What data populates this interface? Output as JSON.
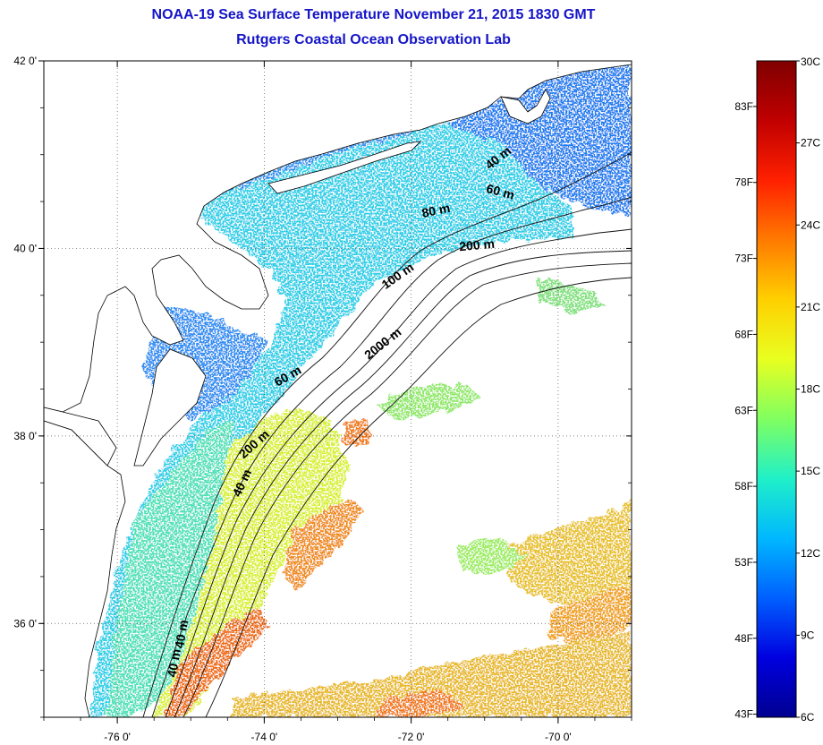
{
  "title": "NOAA-19 Sea Surface Temperature November 21, 2015 1830 GMT",
  "subtitle": "Rutgers Coastal Ocean Observation Lab",
  "map": {
    "lon_range": [
      -77.0,
      -69.0
    ],
    "lat_range": [
      35.0,
      42.0
    ],
    "lon_ticks": [
      {
        "value": -76,
        "label": "-76 0'"
      },
      {
        "value": -74,
        "label": "-74 0'"
      },
      {
        "value": -72,
        "label": "-72 0'"
      },
      {
        "value": -70,
        "label": "-70 0'"
      }
    ],
    "lat_ticks": [
      {
        "value": 42,
        "label": "42 0'"
      },
      {
        "value": 40,
        "label": "40 0'"
      },
      {
        "value": 38,
        "label": "38 0'"
      },
      {
        "value": 36,
        "label": "36 0'"
      }
    ],
    "gridlines": "dotted",
    "isobath_labels": [
      {
        "text": "40 m",
        "lon": -70.78,
        "lat": 40.93,
        "angle": -38
      },
      {
        "text": "60 m",
        "lon": -70.8,
        "lat": 40.56,
        "angle": 15
      },
      {
        "text": "80 m",
        "lon": -71.65,
        "lat": 40.36,
        "angle": -12
      },
      {
        "text": "200 m",
        "lon": -71.1,
        "lat": 39.99,
        "angle": -5
      },
      {
        "text": "100 m",
        "lon": -72.15,
        "lat": 39.67,
        "angle": -35
      },
      {
        "text": "2000 m",
        "lon": -72.35,
        "lat": 38.95,
        "angle": -38
      },
      {
        "text": "60 m",
        "lon": -73.65,
        "lat": 38.6,
        "angle": -30
      },
      {
        "text": "200 m",
        "lon": -74.1,
        "lat": 37.88,
        "angle": -42
      },
      {
        "text": "40 m",
        "lon": -74.25,
        "lat": 37.48,
        "angle": -65
      },
      {
        "text": "40 m",
        "lon": -75.07,
        "lat": 35.88,
        "angle": -80
      },
      {
        "text": "40 m",
        "lon": -75.17,
        "lat": 35.57,
        "angle": -80
      }
    ]
  },
  "colorbar": {
    "colors": [
      "#800000",
      "#c00000",
      "#ff2000",
      "#ff7a00",
      "#ffd000",
      "#e8ff20",
      "#80ff60",
      "#20f0c8",
      "#00b8ff",
      "#0060ff",
      "#0000e0",
      "#000090"
    ],
    "celsius_labels": [
      "30C",
      "27C",
      "24C",
      "21C",
      "18C",
      "15C",
      "12C",
      "9C",
      "6C"
    ],
    "fahrenheit_labels": [
      "83F",
      "78F",
      "73F",
      "68F",
      "63F",
      "58F",
      "53F",
      "48F",
      "43F"
    ]
  },
  "colors": {
    "title": "#1515c8",
    "land": "#ffffff",
    "coastline": "#000000",
    "cold_water": "#1e88f0",
    "shelf_water": "#22d4ee",
    "warm_water": "#dff230",
    "hot_water": "#f06a10"
  }
}
